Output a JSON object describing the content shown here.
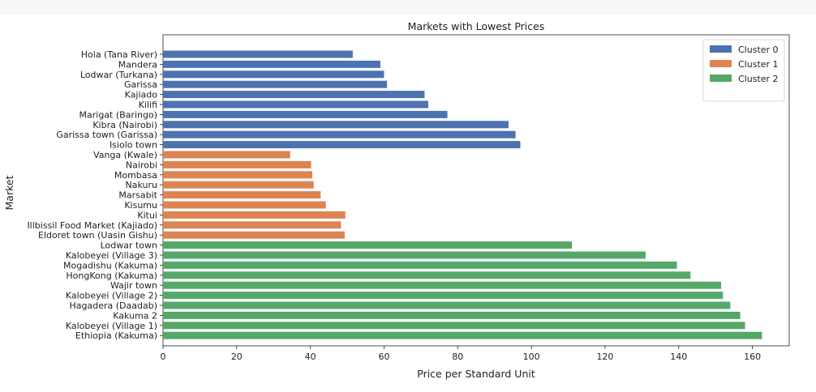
{
  "chart_data": {
    "type": "bar",
    "orientation": "horizontal",
    "title": "Markets with Lowest Prices",
    "xlabel": "Price per Standard Unit",
    "ylabel": "Market",
    "xlim": [
      0,
      170
    ],
    "xticks": [
      0,
      20,
      40,
      60,
      80,
      100,
      120,
      140,
      160
    ],
    "grid": false,
    "legend_position": "top-right",
    "series": [
      {
        "name": "Cluster 0",
        "color": "#4c72b0",
        "categories": [
          "Hola (Tana River)",
          "Mandera",
          "Lodwar (Turkana)",
          "Garissa",
          "Kajiado",
          "Kilifi",
          "Marigat (Baringo)",
          "Kibra (Nairobi)",
          "Garissa town (Garissa)",
          "Isiolo town"
        ],
        "values": [
          51.5,
          59,
          60,
          60.8,
          71,
          72,
          77.2,
          93.8,
          95.7,
          97
        ]
      },
      {
        "name": "Cluster 1",
        "color": "#dd8452",
        "categories": [
          "Vanga (Kwale)",
          "Nairobi",
          "Mombasa",
          "Nakuru",
          "Marsabit",
          "Kisumu",
          "Kitui",
          "Illbissil Food Market (Kajiado)",
          "Eldoret town (Uasin Gishu)"
        ],
        "values": [
          34.5,
          40.2,
          40.5,
          40.9,
          42.8,
          44.2,
          49.5,
          48.3,
          49.3
        ]
      },
      {
        "name": "Cluster 2",
        "color": "#55a868",
        "categories": [
          "Lodwar town",
          "Kalobeyei (Village 3)",
          "Mogadishu (Kakuma)",
          "HongKong (Kakuma)",
          "Wajir town",
          "Kalobeyei (Village 2)",
          "Hagadera (Daadab)",
          "Kakuma 2",
          "Kalobeyei (Village 1)",
          "Ethiopia (Kakuma)"
        ],
        "values": [
          111,
          131,
          139.5,
          143.2,
          151.5,
          152,
          154,
          156.7,
          158,
          162.6
        ]
      }
    ]
  }
}
